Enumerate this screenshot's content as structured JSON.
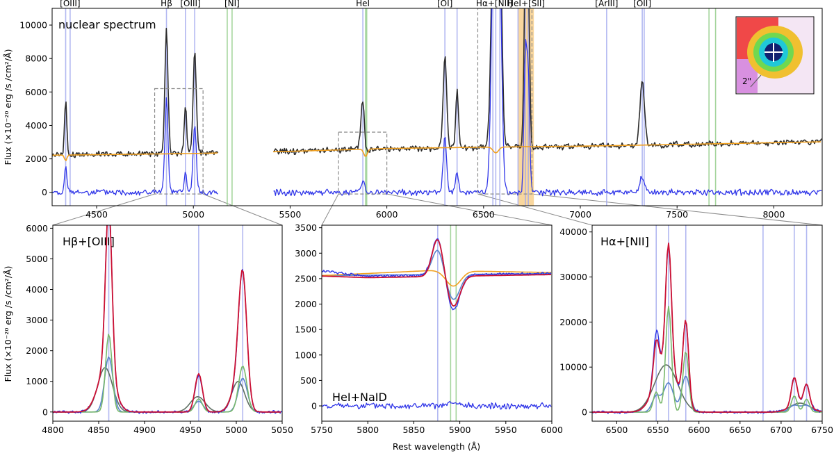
{
  "colors": {
    "observed": "#2b2b2b",
    "residual": "#2f35e8",
    "continuum": "#f0a020",
    "emission_line": "#9fa6ee",
    "absorption_line": "#8fcb85",
    "total_model": "#cc1133",
    "narrow_component": "#78b86c",
    "broad_component": "#5f6f63",
    "component_blue": "#5a84cc",
    "zoom_box": "#8a8a8a",
    "highlight_band": "#f7c97e"
  },
  "chart_data": [
    {
      "id": "main",
      "type": "line",
      "title": "nuclear spectrum",
      "ylabel": "Flux (×10⁻²⁰ erg /s /cm²/Å)",
      "xlabel": "",
      "xlim": [
        4270,
        8250
      ],
      "ylim": [
        -800,
        11000
      ],
      "xticks": [
        4500,
        5000,
        5500,
        6000,
        6500,
        7000,
        7500,
        8000
      ],
      "yticks": [
        0,
        2000,
        4000,
        6000,
        8000,
        10000
      ],
      "line_labels": [
        {
          "text": "[OIII]",
          "x": 4363
        },
        {
          "text": "Hβ",
          "x": 4861
        },
        {
          "text": "[OIII]",
          "x": 4985
        },
        {
          "text": "[NI]",
          "x": 5200
        },
        {
          "text": "HeI",
          "x": 5876
        },
        {
          "text": "[OI]",
          "x": 6300
        },
        {
          "text": "Hα+[NII]",
          "x": 6555
        },
        {
          "text": "HeI+[SII]",
          "x": 6720
        },
        {
          "text": "[ArIII]",
          "x": 7136
        },
        {
          "text": "[OII]",
          "x": 7320
        }
      ],
      "emission_lines": [
        4340,
        4363,
        4861,
        4959,
        5007,
        5876,
        6300,
        6363,
        6548,
        6563,
        6584,
        6678,
        6716,
        6731,
        7136,
        7320,
        7330
      ],
      "absorption_lines": [
        5175,
        5200,
        5890,
        5896,
        7665,
        7699
      ],
      "gap": [
        5130,
        5410
      ],
      "series": [
        {
          "name": "observed",
          "continuum": [
            [
              4270,
              2250
            ],
            [
              5000,
              2350
            ],
            [
              5500,
              2450
            ],
            [
              6000,
              2600
            ],
            [
              6500,
              2700
            ],
            [
              7000,
              2750
            ],
            [
              7500,
              2850
            ],
            [
              8250,
              3050
            ]
          ],
          "peaks": [
            [
              4340,
              3550,
              6
            ],
            [
              4861,
              7400,
              8
            ],
            [
              4959,
              2900,
              6
            ],
            [
              5007,
              6250,
              8
            ],
            [
              5876,
              3000,
              10
            ],
            [
              6300,
              5550,
              9
            ],
            [
              6363,
              3500,
              7
            ],
            [
              6548,
              9000,
              12
            ],
            [
              6563,
              17000,
              11
            ],
            [
              6584,
              12000,
              11
            ],
            [
              6716,
              10800,
              7
            ],
            [
              6731,
              9500,
              7
            ],
            [
              7320,
              3700,
              12
            ]
          ],
          "dips": [
            [
              4340,
              400,
              6
            ],
            [
              5890,
              700,
              8
            ],
            [
              6563,
              500,
              14
            ]
          ]
        },
        {
          "name": "residual",
          "continuum": [
            [
              4270,
              0
            ],
            [
              8250,
              0
            ]
          ],
          "peaks": [
            [
              4340,
              1500,
              6
            ],
            [
              4861,
              5600,
              8
            ],
            [
              4959,
              1200,
              6
            ],
            [
              5007,
              4100,
              8
            ],
            [
              5876,
              700,
              10
            ],
            [
              6300,
              3200,
              9
            ],
            [
              6363,
              1200,
              7
            ],
            [
              6548,
              9000,
              12
            ],
            [
              6563,
              17000,
              11
            ],
            [
              6584,
              12000,
              11
            ],
            [
              6716,
              8300,
              7
            ],
            [
              6731,
              6800,
              7
            ],
            [
              7320,
              900,
              12
            ]
          ]
        },
        {
          "name": "continuum-model",
          "continuum": [
            [
              4270,
              2220
            ],
            [
              5000,
              2320
            ],
            [
              5500,
              2450
            ],
            [
              6000,
              2620
            ],
            [
              6500,
              2700
            ],
            [
              7000,
              2760
            ],
            [
              7500,
              2860
            ],
            [
              8250,
              3020
            ]
          ],
          "dips": [
            [
              4340,
              350,
              6
            ],
            [
              5890,
              450,
              9
            ],
            [
              6563,
              350,
              14
            ]
          ]
        }
      ],
      "zoom_boxes": [
        {
          "x": [
            4800,
            5050
          ],
          "y": [
            -100,
            6200
          ]
        },
        {
          "x": [
            5750,
            6000
          ],
          "y": [
            -100,
            3600
          ]
        },
        {
          "x": [
            6470,
            6750
          ],
          "y": [
            -100,
            11000
          ]
        }
      ],
      "highlight_band": [
        6680,
        6760
      ],
      "inset_image": {
        "scale_label": "2\""
      }
    },
    {
      "id": "hbeta",
      "type": "line",
      "title": "Hβ+[OIII]",
      "ylabel": "Flux (×10⁻²⁰ erg /s /cm²/Å)",
      "xlabel": "",
      "xlim": [
        4800,
        5050
      ],
      "ylim": [
        -300,
        6100
      ],
      "xticks": [
        4800,
        4850,
        4900,
        4950,
        5000,
        5050
      ],
      "yticks": [
        0,
        1000,
        2000,
        3000,
        4000,
        5000,
        6000
      ],
      "emission_lines": [
        4861,
        4959,
        5007
      ],
      "series": [
        {
          "name": "data",
          "peaks": [
            [
              4861,
              5500,
              3.5
            ],
            [
              4858,
              1400,
              9
            ],
            [
              4959,
              1200,
              4
            ],
            [
              5007,
              4000,
              4.5
            ],
            [
              5002,
              800,
              7
            ]
          ]
        },
        {
          "name": "total",
          "peaks": [
            [
              4861,
              5450,
              3.5
            ],
            [
              4858,
              1400,
              9
            ],
            [
              4959,
              1250,
              4
            ],
            [
              5007,
              3950,
              4.5
            ],
            [
              5002,
              900,
              7
            ]
          ]
        },
        {
          "name": "narrow",
          "peaks": [
            [
              4861,
              2550,
              3.5
            ],
            [
              4959,
              430,
              4
            ],
            [
              5007,
              1500,
              4.5
            ]
          ]
        },
        {
          "name": "intermediate",
          "peaks": [
            [
              4861,
              1800,
              4.5
            ],
            [
              4959,
              350,
              5
            ],
            [
              5007,
              1100,
              5
            ]
          ]
        },
        {
          "name": "broad",
          "peaks": [
            [
              4857,
              1450,
              8
            ],
            [
              4958,
              500,
              8
            ],
            [
              5002,
              1000,
              7
            ]
          ]
        }
      ]
    },
    {
      "id": "nad",
      "type": "line",
      "title": "HeI+NaID",
      "ylabel": "",
      "xlabel": "Rest wavelength (Å)",
      "xlim": [
        5750,
        6000
      ],
      "ylim": [
        -300,
        3550
      ],
      "xticks": [
        5750,
        5800,
        5850,
        5900,
        5950,
        6000
      ],
      "yticks": [
        0,
        500,
        1000,
        1500,
        2000,
        2500,
        3000,
        3500
      ],
      "emission_lines": [
        5876
      ],
      "absorption_lines": [
        5890,
        5896
      ],
      "series": [
        {
          "name": "data",
          "continuum": [
            [
              5750,
              2650
            ],
            [
              5800,
              2550
            ],
            [
              6000,
              2600
            ]
          ],
          "peaks": [
            [
              5876,
              750,
              6
            ]
          ],
          "dips": [
            [
              5893,
              700,
              7
            ]
          ]
        },
        {
          "name": "total",
          "continuum": [
            [
              5750,
              2550
            ],
            [
              5800,
              2520
            ],
            [
              6000,
              2580
            ]
          ],
          "peaks": [
            [
              5876,
              750,
              6
            ]
          ],
          "dips": [
            [
              5893,
              600,
              7
            ]
          ]
        },
        {
          "name": "continuum-model",
          "continuum": [
            [
              5750,
              2560
            ],
            [
              5870,
              2660
            ],
            [
              6000,
              2620
            ]
          ],
          "dips": [
            [
              5893,
              300,
              8
            ]
          ]
        },
        {
          "name": "absorption-model",
          "continuum": [
            [
              5750,
              2560
            ],
            [
              6000,
              2600
            ]
          ],
          "peaks": [
            [
              5876,
              500,
              6
            ]
          ],
          "dips": [
            [
              5893,
              500,
              7
            ]
          ]
        },
        {
          "name": "residual",
          "continuum": [
            [
              5750,
              0
            ],
            [
              6000,
              0
            ]
          ],
          "peaks": [
            [
              5893,
              50,
              5
            ]
          ]
        }
      ]
    },
    {
      "id": "halpha",
      "type": "line",
      "title": "Hα+[NII]",
      "ylabel": "",
      "xlabel": "",
      "xlim": [
        6470,
        6750
      ],
      "ylim": [
        -2000,
        41500
      ],
      "xticks": [
        6500,
        6550,
        6600,
        6650,
        6700,
        6750
      ],
      "yticks": [
        0,
        10000,
        20000,
        30000,
        40000
      ],
      "emission_lines": [
        6548,
        6563,
        6584,
        6678,
        6716,
        6731
      ],
      "series": [
        {
          "name": "data",
          "peaks": [
            [
              6548,
              11000,
              3.5
            ],
            [
              6563,
              26500,
              3.5
            ],
            [
              6584,
              18500,
              3.5
            ],
            [
              6560,
              10800,
              13
            ],
            [
              6716,
              6200,
              3.5
            ],
            [
              6731,
              4800,
              3.5
            ],
            [
              6723,
              1800,
              12
            ]
          ]
        },
        {
          "name": "total",
          "peaks": [
            [
              6548,
              9000,
              3.5
            ],
            [
              6563,
              27000,
              3.5
            ],
            [
              6584,
              18500,
              3.5
            ],
            [
              6560,
              10800,
              13
            ],
            [
              6716,
              6200,
              3.5
            ],
            [
              6731,
              4800,
              3.5
            ],
            [
              6723,
              1800,
              12
            ]
          ]
        },
        {
          "name": "narrow",
          "peaks": [
            [
              6548,
              4500,
              3.5
            ],
            [
              6563,
              23500,
              3.5
            ],
            [
              6584,
              13500,
              3.5
            ],
            [
              6716,
              3600,
              3.5
            ],
            [
              6731,
              2900,
              3.5
            ]
          ]
        },
        {
          "name": "broad",
          "peaks": [
            [
              6560,
              10500,
              14
            ],
            [
              6723,
              2000,
              12
            ]
          ]
        },
        {
          "name": "intermediate",
          "peaks": [
            [
              6548,
              3500,
              5
            ],
            [
              6563,
              6500,
              6
            ],
            [
              6584,
              8000,
              5
            ],
            [
              6716,
              1500,
              6
            ],
            [
              6731,
              1500,
              6
            ]
          ]
        }
      ]
    }
  ]
}
